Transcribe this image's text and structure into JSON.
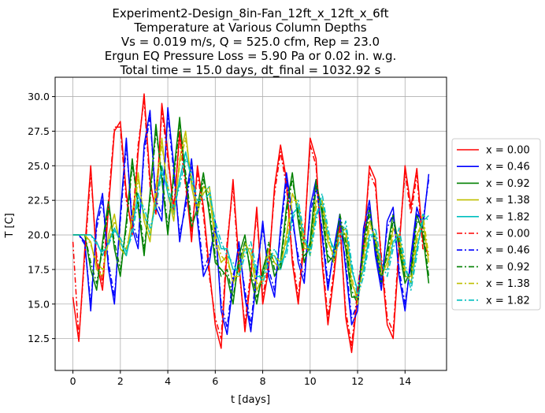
{
  "chart_data": {
    "type": "line",
    "title_lines": [
      "Experiment2-Design_8in-Fan_12ft_x_12ft_x_6ft",
      "Temperature at Various Column Depths",
      "Vs = 0.019 m/s, Q = 525.0 cfm, Rep = 23.0",
      "Ergun EQ Pressure Loss = 5.90 Pa or 0.02 in. w.g.",
      "Total time = 15.0 days, dt_final = 1032.92 s"
    ],
    "xlabel": "t [days]",
    "ylabel": "T [C]",
    "xlim": [
      -0.75,
      15.75
    ],
    "ylim": [
      10.2,
      31.4
    ],
    "xticks": [
      0,
      2,
      4,
      6,
      8,
      10,
      12,
      14
    ],
    "xtick_labels": [
      "0",
      "2",
      "4",
      "6",
      "8",
      "10",
      "12",
      "14"
    ],
    "yticks": [
      12.5,
      15.0,
      17.5,
      20.0,
      22.5,
      25.0,
      27.5,
      30.0
    ],
    "ytick_labels": [
      "12.5",
      "15.0",
      "17.5",
      "20.0",
      "22.5",
      "25.0",
      "27.5",
      "30.0"
    ],
    "grid": true,
    "legend_position": "outside-right",
    "x": [
      0.0,
      0.25,
      0.5,
      0.75,
      1.0,
      1.25,
      1.5,
      1.75,
      2.0,
      2.25,
      2.5,
      2.75,
      3.0,
      3.25,
      3.5,
      3.75,
      4.0,
      4.25,
      4.5,
      4.75,
      5.0,
      5.25,
      5.5,
      5.75,
      6.0,
      6.25,
      6.5,
      6.75,
      7.0,
      7.25,
      7.5,
      7.75,
      8.0,
      8.25,
      8.5,
      8.75,
      9.0,
      9.25,
      9.5,
      9.75,
      10.0,
      10.25,
      10.5,
      10.75,
      11.0,
      11.25,
      11.5,
      11.75,
      12.0,
      12.25,
      12.5,
      12.75,
      13.0,
      13.25,
      13.5,
      13.75,
      14.0,
      14.25,
      14.5,
      14.75,
      15.0
    ],
    "series": [
      {
        "name": "x = 0.00",
        "color": "#ff0000",
        "style": "solid",
        "values": [
          15.5,
          12.3,
          19.0,
          25.0,
          18.0,
          16.0,
          22.0,
          27.5,
          28.2,
          23.0,
          20.0,
          26.0,
          30.2,
          24.0,
          21.5,
          29.5,
          26.0,
          21.5,
          27.5,
          24.0,
          19.5,
          25.0,
          22.0,
          17.5,
          13.5,
          11.8,
          19.0,
          24.0,
          18.0,
          13.0,
          17.0,
          22.0,
          15.0,
          17.5,
          23.5,
          26.5,
          24.0,
          18.0,
          15.0,
          19.5,
          27.0,
          25.5,
          18.0,
          13.5,
          17.0,
          21.0,
          14.0,
          11.5,
          15.5,
          19.0,
          25.0,
          24.0,
          18.0,
          13.5,
          12.5,
          19.0,
          25.0,
          22.0,
          24.8,
          19.5,
          18.5
        ]
      },
      {
        "name": "x = 0.46",
        "color": "#0000ff",
        "style": "solid",
        "values": [
          20.0,
          20.0,
          19.5,
          14.5,
          21.0,
          23.0,
          17.5,
          15.0,
          21.5,
          27.0,
          20.5,
          19.0,
          26.5,
          29.0,
          22.0,
          21.0,
          29.2,
          25.0,
          19.5,
          22.5,
          25.5,
          21.0,
          17.0,
          18.0,
          21.0,
          14.5,
          12.8,
          16.5,
          19.5,
          15.5,
          13.0,
          17.0,
          21.0,
          17.0,
          15.5,
          20.5,
          24.5,
          21.5,
          18.0,
          16.5,
          22.0,
          24.0,
          20.0,
          16.0,
          19.0,
          21.5,
          17.5,
          13.5,
          14.5,
          20.5,
          22.5,
          18.5,
          16.0,
          21.0,
          22.0,
          17.0,
          14.5,
          18.5,
          22.0,
          20.5,
          24.4
        ]
      },
      {
        "name": "x = 0.92",
        "color": "#008000",
        "style": "solid",
        "values": [
          20.0,
          20.0,
          20.0,
          17.5,
          16.0,
          19.5,
          22.5,
          19.0,
          17.0,
          21.0,
          25.5,
          22.0,
          18.5,
          23.0,
          28.0,
          24.0,
          20.0,
          24.5,
          28.5,
          24.0,
          20.5,
          22.0,
          24.5,
          21.5,
          18.0,
          17.5,
          17.0,
          15.0,
          18.5,
          20.0,
          17.0,
          15.0,
          17.5,
          19.0,
          17.0,
          18.0,
          22.0,
          24.5,
          21.0,
          18.0,
          19.5,
          24.0,
          21.5,
          18.0,
          18.5,
          21.0,
          19.0,
          15.5,
          15.5,
          19.5,
          22.0,
          19.0,
          16.5,
          19.0,
          21.5,
          19.0,
          16.5,
          17.5,
          21.5,
          20.0,
          16.5
        ]
      },
      {
        "name": "x = 1.38",
        "color": "#bfbf00",
        "style": "solid",
        "values": [
          20.0,
          20.0,
          20.0,
          19.5,
          17.5,
          17.0,
          20.0,
          21.5,
          19.0,
          18.5,
          21.5,
          24.5,
          21.0,
          19.5,
          23.5,
          27.0,
          23.0,
          21.0,
          25.5,
          27.5,
          23.5,
          21.5,
          23.5,
          23.0,
          19.5,
          18.0,
          18.5,
          16.5,
          17.5,
          19.5,
          18.5,
          16.0,
          17.0,
          19.0,
          18.0,
          17.5,
          20.0,
          23.0,
          22.0,
          19.0,
          19.0,
          22.5,
          22.0,
          19.5,
          18.5,
          20.5,
          20.0,
          16.5,
          15.5,
          18.5,
          21.0,
          19.5,
          17.0,
          18.0,
          20.5,
          19.5,
          17.0,
          17.0,
          20.0,
          21.0,
          18.0
        ]
      },
      {
        "name": "x = 1.82",
        "color": "#00bfbf",
        "style": "solid",
        "values": [
          20.0,
          20.0,
          20.0,
          20.0,
          19.5,
          18.5,
          19.5,
          20.5,
          19.5,
          18.5,
          20.5,
          23.0,
          21.5,
          20.0,
          22.5,
          25.0,
          23.0,
          21.5,
          24.0,
          26.0,
          24.0,
          22.0,
          23.0,
          23.5,
          20.5,
          19.0,
          19.0,
          17.5,
          17.5,
          19.0,
          19.0,
          17.0,
          17.0,
          18.5,
          18.5,
          17.5,
          19.0,
          21.5,
          22.0,
          19.5,
          19.0,
          21.5,
          22.5,
          20.0,
          19.0,
          20.0,
          20.5,
          17.5,
          16.0,
          17.5,
          20.0,
          20.0,
          17.5,
          17.5,
          19.5,
          20.0,
          17.5,
          16.5,
          19.0,
          21.0,
          21.4
        ]
      },
      {
        "name": "x = 0.00",
        "color": "#ff0000",
        "style": "dashdot",
        "values": [
          19.5,
          12.5,
          18.5,
          24.5,
          18.5,
          16.5,
          22.5,
          27.8,
          27.8,
          22.5,
          20.5,
          26.5,
          29.8,
          23.5,
          22.0,
          29.0,
          25.5,
          22.0,
          27.0,
          23.5,
          20.0,
          24.5,
          21.5,
          17.0,
          14.0,
          12.5,
          19.5,
          23.5,
          17.5,
          13.5,
          17.5,
          21.5,
          15.5,
          18.0,
          23.0,
          26.0,
          23.5,
          18.5,
          15.5,
          20.0,
          26.5,
          25.0,
          18.5,
          14.0,
          17.5,
          20.5,
          14.5,
          12.0,
          16.0,
          19.5,
          24.5,
          23.5,
          18.5,
          14.0,
          13.0,
          19.5,
          24.5,
          21.5,
          24.3,
          19.0,
          18.8
        ]
      },
      {
        "name": "x = 0.46",
        "color": "#0000ff",
        "style": "dashdot",
        "values": [
          20.0,
          20.0,
          19.3,
          15.0,
          20.5,
          22.5,
          18.0,
          15.5,
          21.0,
          26.5,
          21.0,
          19.5,
          26.0,
          28.5,
          22.5,
          21.5,
          28.8,
          24.5,
          20.0,
          22.0,
          25.0,
          21.5,
          17.5,
          18.5,
          20.5,
          15.0,
          13.3,
          17.0,
          19.0,
          16.0,
          13.5,
          17.5,
          20.5,
          17.5,
          16.0,
          20.0,
          24.0,
          21.0,
          18.5,
          17.0,
          21.5,
          23.5,
          20.5,
          16.5,
          18.5,
          21.0,
          18.0,
          14.0,
          15.0,
          20.0,
          22.0,
          19.0,
          16.5,
          20.5,
          21.5,
          17.5,
          15.0,
          18.0,
          21.5,
          21.0,
          24.0
        ]
      },
      {
        "name": "x = 0.92",
        "color": "#008000",
        "style": "dashdot",
        "values": [
          20.0,
          20.0,
          20.0,
          18.0,
          16.5,
          19.0,
          22.0,
          19.5,
          17.5,
          20.5,
          25.0,
          22.5,
          19.0,
          22.5,
          27.5,
          24.5,
          20.5,
          24.0,
          28.0,
          24.5,
          21.0,
          21.5,
          24.0,
          22.0,
          18.5,
          17.0,
          17.5,
          15.5,
          18.0,
          19.5,
          17.5,
          15.5,
          17.0,
          19.5,
          17.5,
          17.5,
          21.5,
          24.0,
          21.5,
          18.5,
          19.0,
          23.5,
          22.0,
          18.5,
          18.0,
          21.5,
          19.5,
          16.0,
          15.0,
          19.0,
          21.5,
          19.5,
          17.0,
          18.5,
          21.0,
          19.5,
          17.0,
          17.0,
          21.0,
          20.5,
          17.0
        ]
      },
      {
        "name": "x = 1.38",
        "color": "#bfbf00",
        "style": "dashdot",
        "values": [
          20.0,
          20.0,
          20.0,
          19.3,
          18.0,
          17.5,
          19.5,
          21.0,
          19.5,
          19.0,
          21.0,
          24.0,
          21.5,
          20.0,
          23.0,
          26.5,
          23.5,
          21.5,
          25.0,
          27.0,
          24.0,
          22.0,
          23.0,
          23.5,
          20.0,
          18.5,
          18.0,
          17.0,
          17.0,
          19.0,
          19.0,
          16.5,
          16.5,
          18.5,
          18.5,
          18.0,
          19.5,
          22.5,
          22.5,
          19.5,
          18.5,
          22.0,
          22.5,
          20.0,
          18.0,
          20.0,
          20.5,
          17.0,
          15.0,
          18.0,
          20.5,
          20.0,
          17.5,
          17.5,
          20.0,
          20.0,
          17.5,
          16.5,
          19.5,
          21.5,
          18.5
        ]
      },
      {
        "name": "x = 1.82",
        "color": "#00bfbf",
        "style": "dashdot",
        "values": [
          20.0,
          20.0,
          20.0,
          20.0,
          19.3,
          18.8,
          19.3,
          20.3,
          19.8,
          18.8,
          20.0,
          22.5,
          22.0,
          20.5,
          22.0,
          24.5,
          23.5,
          22.0,
          23.5,
          25.5,
          24.5,
          22.5,
          22.5,
          23.0,
          21.0,
          19.5,
          18.5,
          18.0,
          17.0,
          18.5,
          19.5,
          17.5,
          16.5,
          18.0,
          19.0,
          18.0,
          18.5,
          21.0,
          22.5,
          20.0,
          18.5,
          21.0,
          23.0,
          20.5,
          18.5,
          19.5,
          21.0,
          18.0,
          15.5,
          17.0,
          19.5,
          20.5,
          18.0,
          17.0,
          19.0,
          20.5,
          18.0,
          16.0,
          18.5,
          21.5,
          21.0
        ]
      }
    ]
  }
}
